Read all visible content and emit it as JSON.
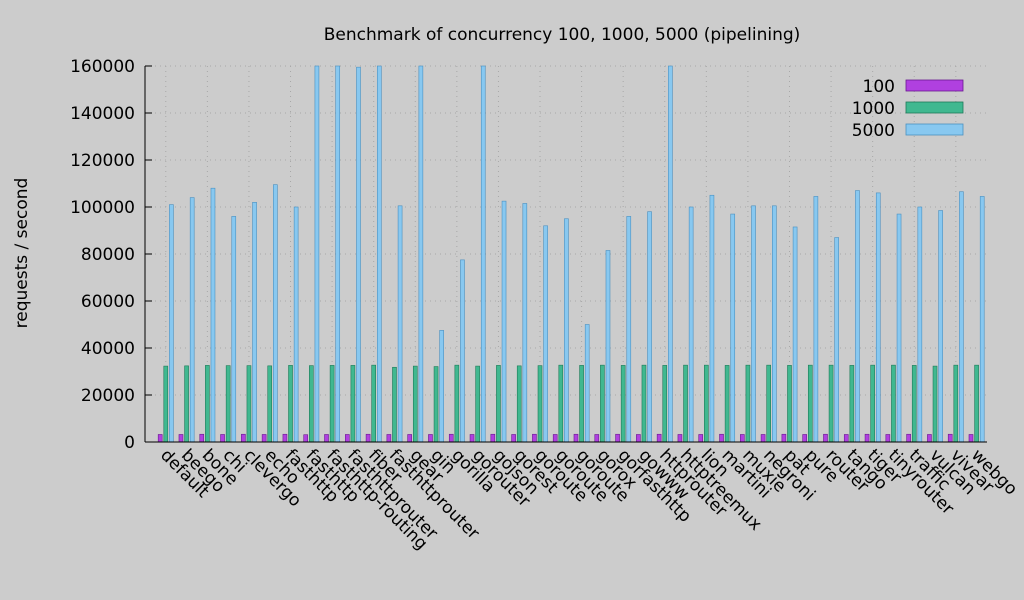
{
  "chart_data": {
    "type": "bar",
    "title": "Benchmark of concurrency 100, 1000, 5000 (pipelining)",
    "xlabel": "",
    "ylabel": "requests / second",
    "ylim": [
      0,
      160000
    ],
    "yticks": [
      "0",
      "20000",
      "40000",
      "60000",
      "80000",
      "100000",
      "120000",
      "140000",
      "160000"
    ],
    "grid": true,
    "legend_position": "top-right",
    "categories": [
      "default",
      "beego",
      "bone",
      "chi",
      "clevergo",
      "echo",
      "fasthttp",
      "fasthttp",
      "fasthttp-routing",
      "fasthttprouter",
      "fiber",
      "fasthttprouter",
      "gear",
      "gin",
      "gorilla",
      "gorouter",
      "gojson",
      "gorest",
      "goroute",
      "goroute",
      "goroute",
      "gorox",
      "gorfasthttp",
      "gowww",
      "httprouter",
      "httptreemux",
      "lion",
      "martini",
      "muxie",
      "negroni",
      "pat",
      "pure",
      "router",
      "tango",
      "tiger",
      "tinyrouter",
      "traffic",
      "vulcan",
      "vivear",
      "webgo"
    ],
    "series": [
      {
        "name": "100",
        "color": "#b040e0",
        "values": [
          3200,
          3200,
          3300,
          3200,
          3300,
          3200,
          3300,
          3100,
          3200,
          3200,
          3300,
          3200,
          3200,
          3200,
          3300,
          3200,
          3300,
          3200,
          3300,
          3200,
          3300,
          3200,
          3300,
          3200,
          3300,
          3200,
          3200,
          3300,
          3200,
          3200,
          3300,
          3200,
          3300,
          3200,
          3300,
          3200,
          3300,
          3200,
          3300,
          3200
        ]
      },
      {
        "name": "1000",
        "color": "#40b890",
        "values": [
          32300,
          32400,
          32600,
          32500,
          32500,
          32400,
          32600,
          32500,
          32600,
          32600,
          32700,
          31800,
          32300,
          32100,
          32700,
          32300,
          32600,
          32400,
          32500,
          32700,
          32600,
          32700,
          32600,
          32700,
          32600,
          32700,
          32700,
          32600,
          32700,
          32700,
          32600,
          32700,
          32700,
          32600,
          32700,
          32700,
          32600,
          32300,
          32700,
          32700
        ]
      },
      {
        "name": "5000",
        "color": "#88c8f0",
        "values": [
          101000,
          104000,
          108000,
          96000,
          102000,
          109500,
          100000,
          160000,
          160000,
          159500,
          160000,
          100500,
          160000,
          47500,
          77500,
          160000,
          102500,
          101500,
          92000,
          95000,
          50000,
          81500,
          96000,
          98000,
          160000,
          100000,
          105000,
          97000,
          100500,
          100500,
          91500,
          104500,
          87000,
          107000,
          106000,
          97000,
          100000,
          98500,
          106500,
          104500
        ]
      }
    ]
  }
}
